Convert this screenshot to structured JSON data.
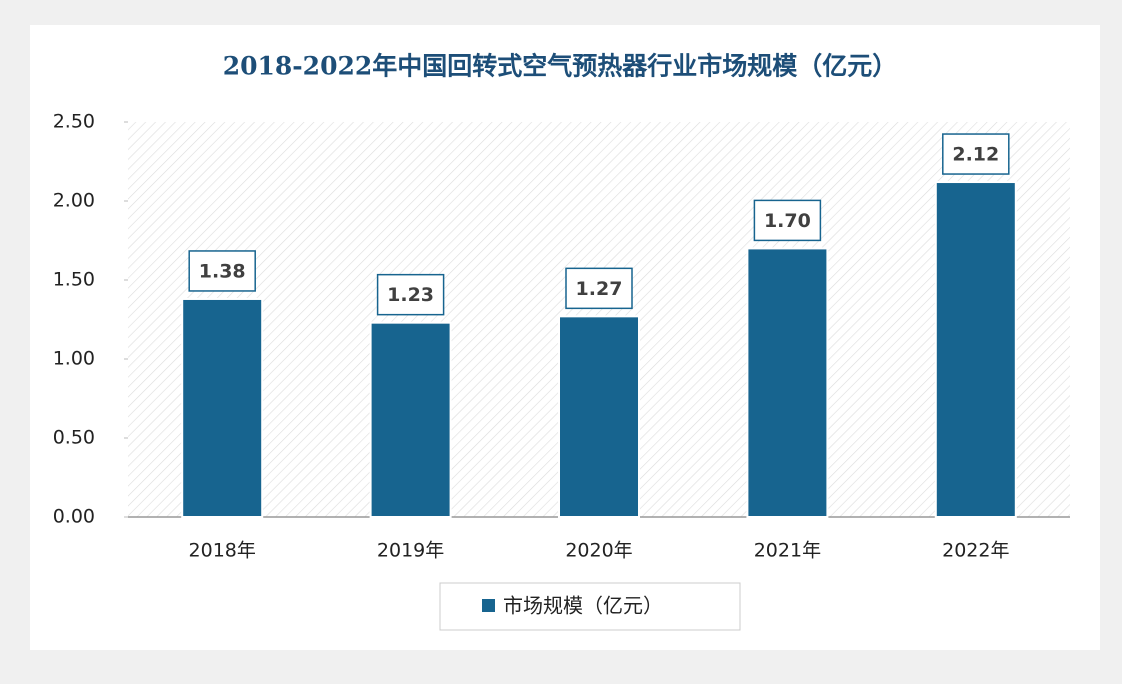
{
  "chart_data": {
    "type": "bar",
    "title": "2018-2022年中国回转式空气预热器行业市场规模（亿元）",
    "categories": [
      "2018年",
      "2019年",
      "2020年",
      "2021年",
      "2022年"
    ],
    "series": [
      {
        "name": "市场规模（亿元）",
        "color": "#17648f",
        "values": [
          1.38,
          1.23,
          1.27,
          1.7,
          2.12
        ],
        "value_labels": [
          "1.38",
          "1.23",
          "1.27",
          "1.70",
          "2.12"
        ]
      }
    ],
    "ylim": [
      0,
      2.5
    ],
    "yticks": [
      {
        "value": 0,
        "label": "0.00"
      },
      {
        "value": 0.5,
        "label": "0.50"
      },
      {
        "value": 1,
        "label": "1.00"
      },
      {
        "value": 1.5,
        "label": "1.50"
      },
      {
        "value": 2,
        "label": "2.00"
      },
      {
        "value": 2.5,
        "label": "2.50"
      }
    ],
    "legend": "bottom"
  }
}
